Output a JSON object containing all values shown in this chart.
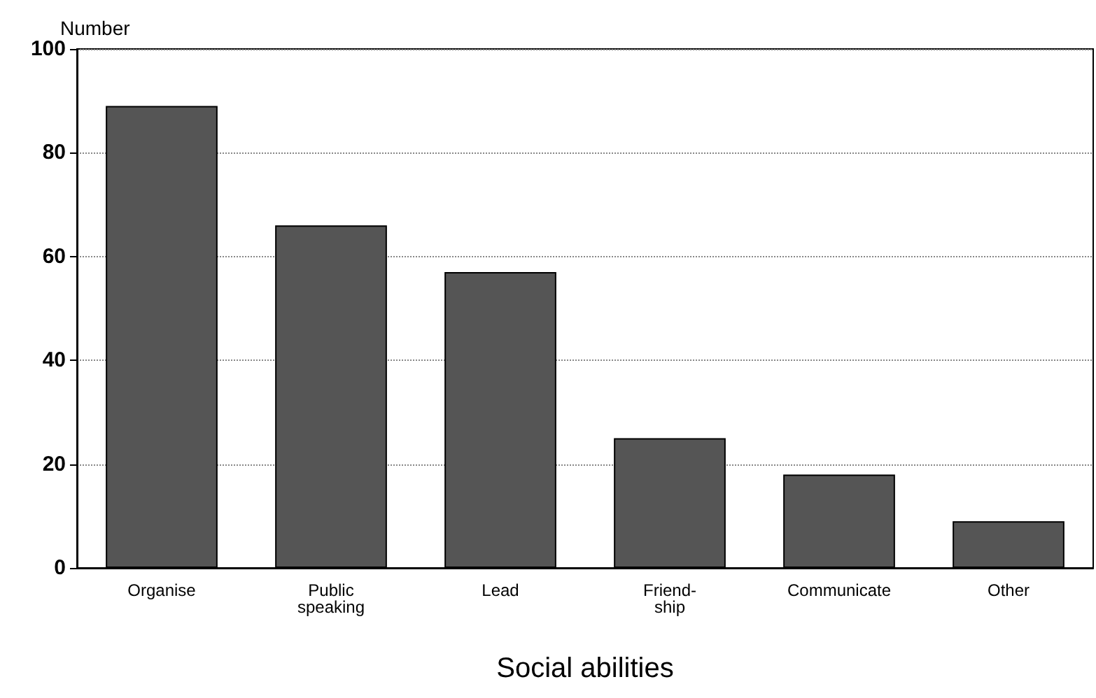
{
  "chart_data": {
    "type": "bar",
    "xlabel": "Social abilities",
    "ylabel": "Number",
    "categories": [
      "Organise",
      "Public\nspeaking",
      "Lead",
      "Friend-\nship",
      "Communicate",
      "Other"
    ],
    "values": [
      89,
      66,
      57,
      25,
      18,
      9
    ],
    "color": "#555555",
    "ylim": [
      0,
      100
    ],
    "yticks": [
      0,
      20,
      40,
      60,
      80,
      100
    ],
    "grid": "y"
  }
}
